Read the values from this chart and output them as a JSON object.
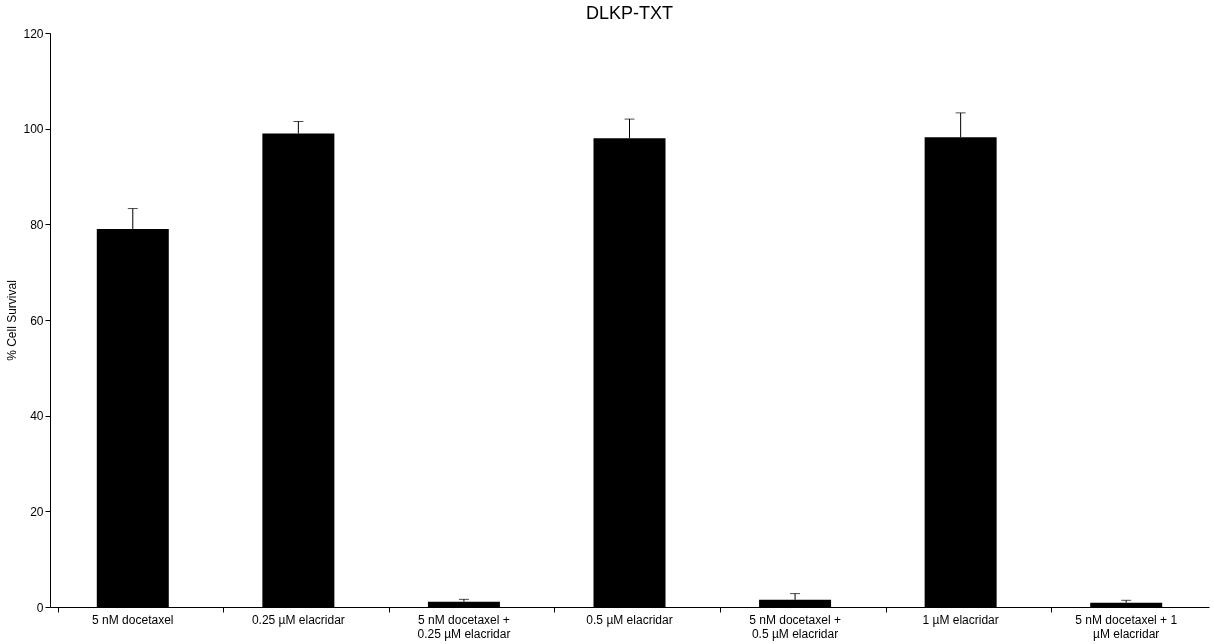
{
  "chart_data": {
    "type": "bar",
    "title": "DLKP-TXT",
    "ylabel": "% Cell Survival",
    "categories": [
      "5 nM docetaxel",
      "0.25 µM elacridar",
      "5 nM docetaxel + 0.25 µM elacridar",
      "0.5 µM elacridar",
      "5 nM docetaxel + 0.5 µM elacridar",
      "1 µM elacridar",
      "5 nM docetaxel + 1 µM elacridar"
    ],
    "values": [
      79,
      99,
      1.1,
      98,
      1.5,
      98.2,
      0.9
    ],
    "errors": [
      [
        79,
        83.3
      ],
      [
        99,
        101.5
      ],
      [
        1.1,
        1.6
      ],
      [
        98,
        102
      ],
      [
        1.5,
        2.8
      ],
      [
        98.2,
        103.3
      ],
      [
        0.9,
        1.4
      ]
    ],
    "color": "#000000",
    "ylim": [
      0,
      120
    ],
    "yticks": [
      0,
      20,
      40,
      60,
      80,
      100,
      120
    ],
    "grid": false
  }
}
